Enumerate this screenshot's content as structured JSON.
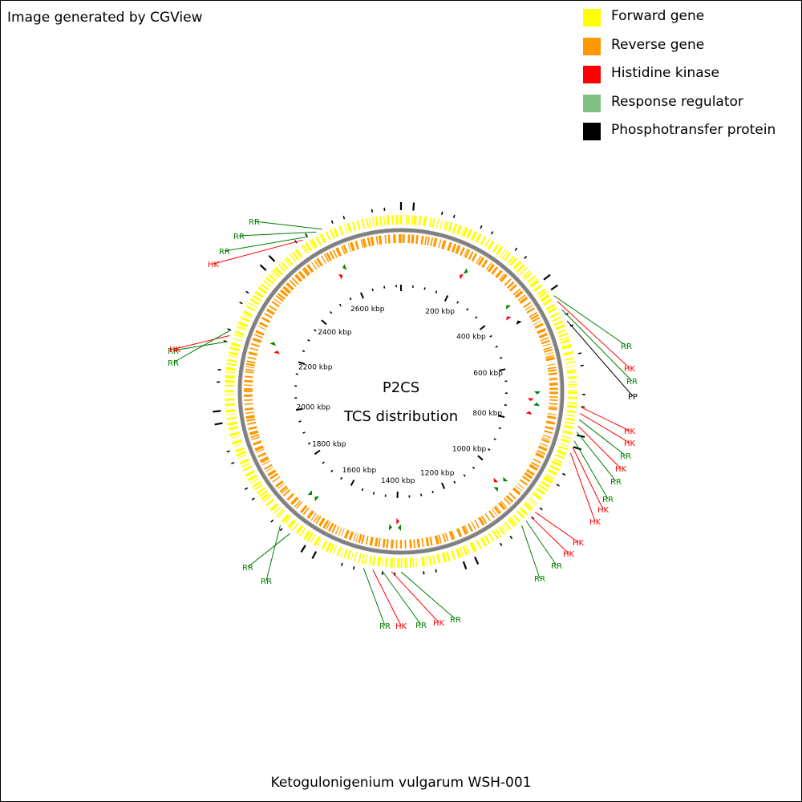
{
  "header": {
    "credit": "Image generated by CGView"
  },
  "legend": [
    {
      "label": "Forward gene",
      "color": "#ffff00"
    },
    {
      "label": "Reverse gene",
      "color": "#ff9900"
    },
    {
      "label": "Histidine kinase",
      "color": "#ff0000"
    },
    {
      "label": "Response regulator",
      "color": "#7fbf7f"
    },
    {
      "label": "Phosphotransfer protein",
      "color": "#000000"
    }
  ],
  "map": {
    "title_line1": "P2CS",
    "title_line2": "TCS distribution",
    "genome_length_kbp": 2770,
    "tick_labels": [
      "200 kbp",
      "400 kbp",
      "600 kbp",
      "800 kbp",
      "1000 kbp",
      "1200 kbp",
      "1400 kbp",
      "1600 kbp",
      "1800 kbp",
      "2000 kbp",
      "2200 kbp",
      "2400 kbp",
      "2600 kbp"
    ],
    "colors": {
      "forward": "#ffff00",
      "reverse": "#ff9900",
      "backbone": "#808080",
      "hk": "#ff0000",
      "rr": "#008000",
      "pp": "#000000"
    },
    "labels": [
      {
        "text": "RR",
        "type": "rr"
      },
      {
        "text": "RR",
        "type": "rr"
      },
      {
        "text": "RR",
        "type": "rr"
      },
      {
        "text": "HK",
        "type": "hk"
      },
      {
        "text": "RR",
        "type": "rr"
      },
      {
        "text": "HK",
        "type": "hk"
      },
      {
        "text": "RR",
        "type": "rr"
      },
      {
        "text": "PP",
        "type": "pp"
      },
      {
        "text": "HK",
        "type": "hk"
      },
      {
        "text": "HK",
        "type": "hk"
      },
      {
        "text": "RR",
        "type": "rr"
      },
      {
        "text": "HK",
        "type": "hk"
      },
      {
        "text": "RR",
        "type": "rr"
      },
      {
        "text": "RR",
        "type": "rr"
      },
      {
        "text": "HK",
        "type": "hk"
      },
      {
        "text": "HK",
        "type": "hk"
      },
      {
        "text": "HK",
        "type": "hk"
      },
      {
        "text": "HK",
        "type": "hk"
      },
      {
        "text": "RR",
        "type": "rr"
      },
      {
        "text": "RR",
        "type": "rr"
      },
      {
        "text": "RR",
        "type": "rr"
      },
      {
        "text": "HK",
        "type": "hk"
      },
      {
        "text": "RR",
        "type": "rr"
      },
      {
        "text": "HK",
        "type": "hk"
      },
      {
        "text": "RR",
        "type": "rr"
      },
      {
        "text": "RR",
        "type": "rr"
      },
      {
        "text": "RR",
        "type": "rr"
      },
      {
        "text": "RR",
        "type": "rr"
      },
      {
        "text": "HK",
        "type": "hk"
      },
      {
        "text": "RR",
        "type": "rr"
      },
      {
        "text": "HK",
        "type": "hk"
      },
      {
        "text": "HK",
        "type": "hk"
      },
      {
        "text": "RR",
        "type": "rr"
      },
      {
        "text": "RR",
        "type": "rr"
      },
      {
        "text": "HK",
        "type": "hk"
      }
    ]
  },
  "footer": {
    "organism": "Ketogulonigenium vulgarum WSH-001"
  }
}
